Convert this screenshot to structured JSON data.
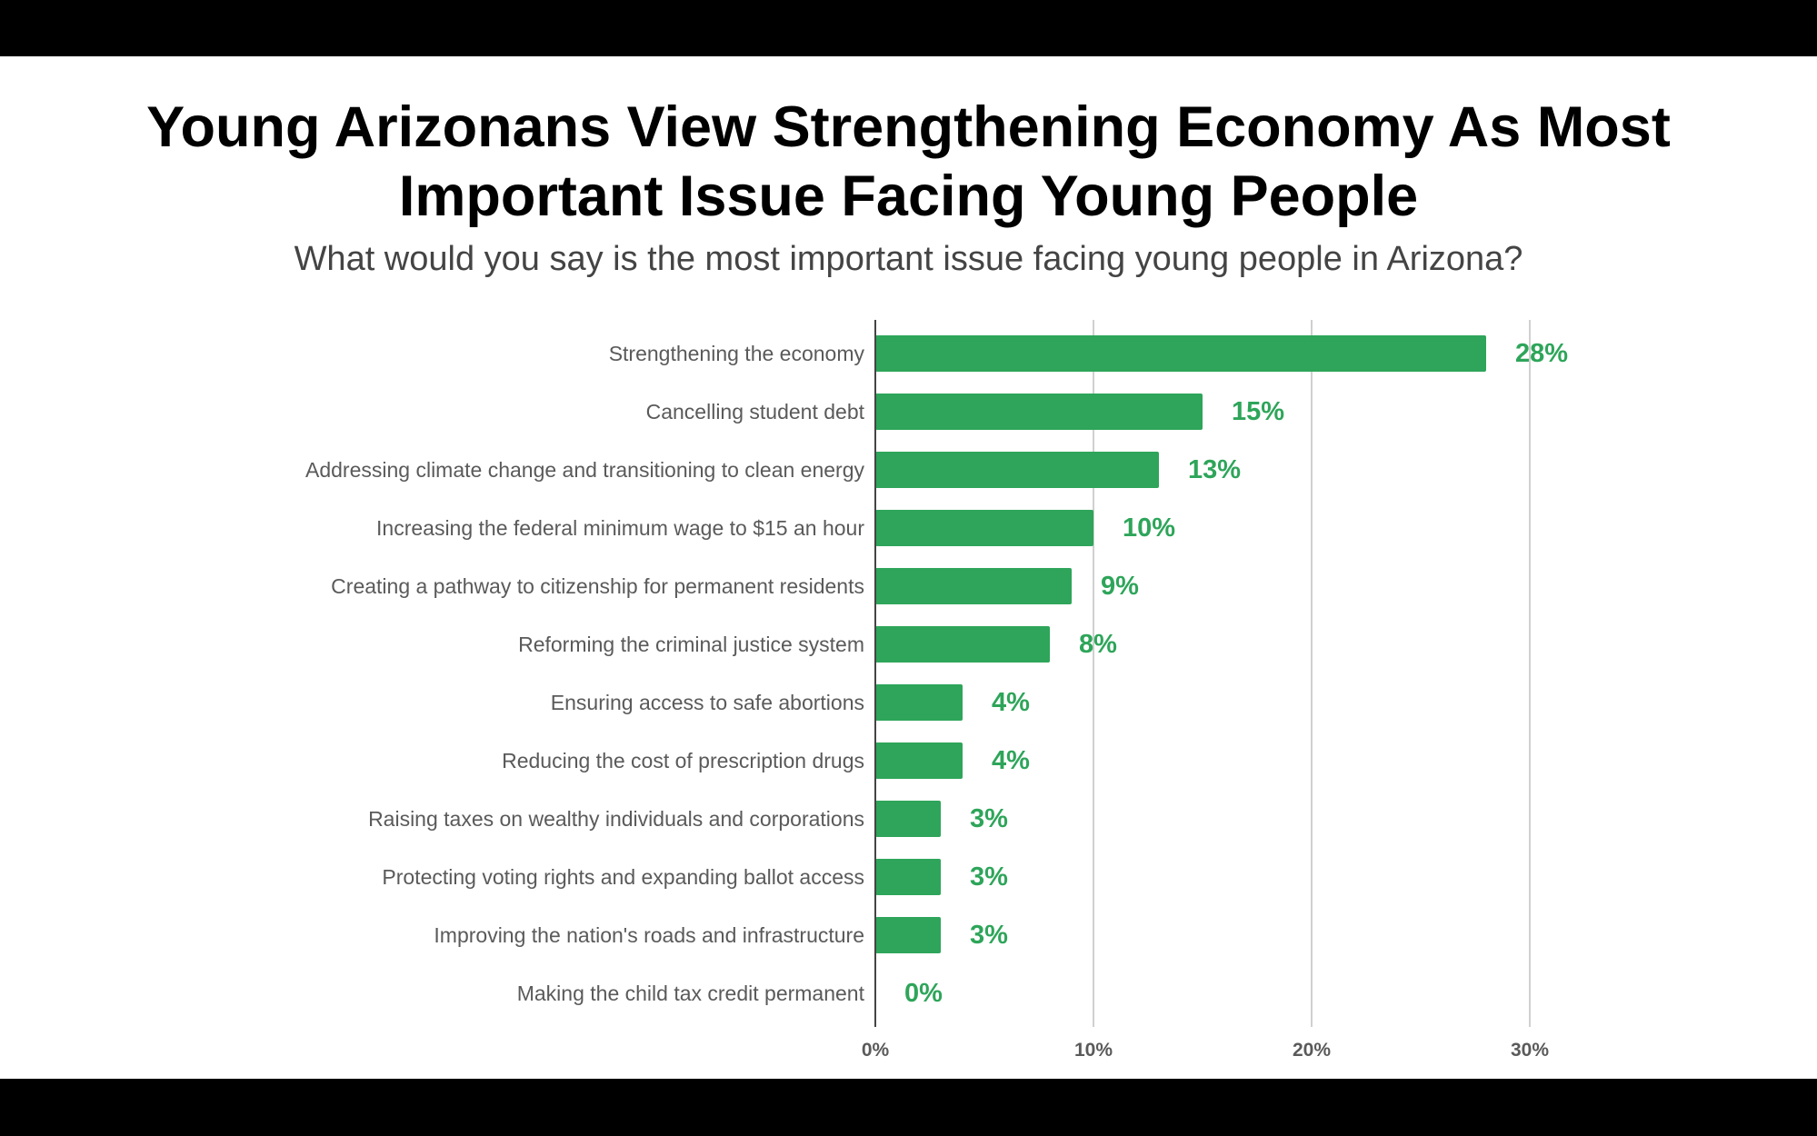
{
  "title": {
    "line1": "Young Arizonans View Strengthening Economy As Most",
    "line2": "Important Issue Facing Young People"
  },
  "subtitle": "What would you say is the most important issue facing young people in Arizona?",
  "colors": {
    "bar": "#2ea55a",
    "value_label": "#2ea55a",
    "frame": "#000000",
    "gridline": "#d0d0d0",
    "axis": "#444444"
  },
  "chart_data": {
    "type": "bar",
    "orientation": "horizontal",
    "categories": [
      "Strengthening the economy",
      "Cancelling student debt",
      "Addressing climate change and transitioning to clean energy",
      "Increasing the federal minimum wage to $15 an hour",
      "Creating a pathway to citizenship for permanent residents",
      "Reforming the criminal justice system",
      "Ensuring access to safe abortions",
      "Reducing the cost of prescription drugs",
      "Raising taxes on wealthy individuals and corporations",
      "Protecting voting rights and expanding ballot access",
      "Improving the nation's roads and infrastructure",
      "Making the child tax credit permanent"
    ],
    "values": [
      28,
      15,
      13,
      10,
      9,
      8,
      4,
      4,
      3,
      3,
      3,
      0
    ],
    "value_labels": [
      "28%",
      "15%",
      "13%",
      "10%",
      "9%",
      "8%",
      "4%",
      "4%",
      "3%",
      "3%",
      "3%",
      "0%"
    ],
    "xlim": [
      0,
      30
    ],
    "x_ticks": [
      0,
      10,
      20,
      30
    ],
    "x_tick_labels": [
      "0%",
      "10%",
      "20%",
      "30%"
    ],
    "grid": true,
    "legend": "none"
  }
}
